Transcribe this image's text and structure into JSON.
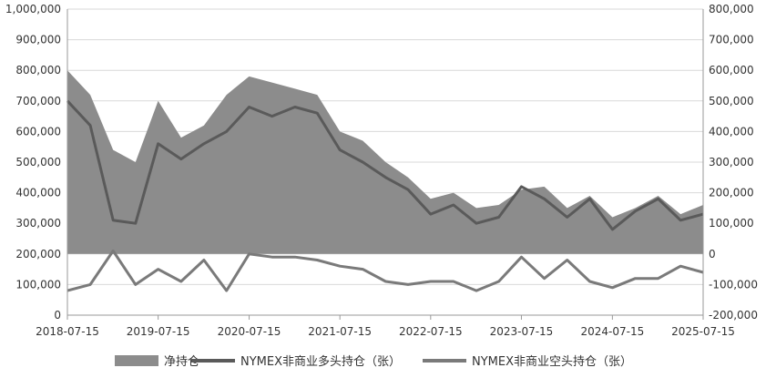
{
  "chart_data": {
    "type": "line",
    "dual_axis": true,
    "title": "",
    "x_ticks": [
      "2018-07-15",
      "2019-07-15",
      "2020-07-15",
      "2021-07-15",
      "2022-07-15",
      "2023-07-15",
      "2024-07-15",
      "2025-07-15"
    ],
    "y_left": {
      "min": 0,
      "max": 1000000,
      "ticks": [
        "0",
        "100,000",
        "200,000",
        "300,000",
        "400,000",
        "500,000",
        "600,000",
        "700,000",
        "800,000",
        "900,000",
        "1,000,000"
      ]
    },
    "y_right": {
      "min": -200000,
      "max": 800000,
      "ticks": [
        "-200,000",
        "-100,000",
        "0",
        "100,000",
        "200,000",
        "300,000",
        "400,000",
        "500,000",
        "600,000",
        "700,000",
        "800,000"
      ]
    },
    "grid": true,
    "legend_position": "bottom",
    "colors": {
      "area": "#8c8c8c",
      "long_line": "#5a5a5a",
      "short_line": "#7a7a7a",
      "grid": "#d9d9d9",
      "axis": "#999999"
    },
    "x": [
      "2018-07-15",
      "2018-10-15",
      "2019-01-15",
      "2019-04-15",
      "2019-07-15",
      "2019-10-15",
      "2020-01-15",
      "2020-04-15",
      "2020-07-15",
      "2020-10-15",
      "2021-01-15",
      "2021-04-15",
      "2021-07-15",
      "2021-10-15",
      "2022-01-15",
      "2022-04-15",
      "2022-07-15",
      "2022-10-15",
      "2023-01-15",
      "2023-04-15",
      "2023-07-15",
      "2023-10-15",
      "2024-01-15",
      "2024-04-15",
      "2024-07-15",
      "2024-10-15",
      "2025-01-15",
      "2025-04-15",
      "2025-07-15"
    ],
    "series": [
      {
        "name": "净持仓",
        "type": "area",
        "axis": "right",
        "values": [
          600000,
          520000,
          340000,
          300000,
          500000,
          380000,
          420000,
          520000,
          580000,
          560000,
          540000,
          520000,
          400000,
          370000,
          300000,
          250000,
          180000,
          200000,
          150000,
          160000,
          210000,
          220000,
          150000,
          190000,
          120000,
          150000,
          190000,
          130000,
          160000
        ]
      },
      {
        "name": "NYMEX非商业多头持仓（张）",
        "type": "line",
        "axis": "left",
        "values": [
          700000,
          620000,
          310000,
          300000,
          560000,
          510000,
          560000,
          600000,
          680000,
          650000,
          680000,
          660000,
          540000,
          500000,
          450000,
          410000,
          330000,
          360000,
          300000,
          320000,
          420000,
          380000,
          320000,
          380000,
          280000,
          340000,
          380000,
          310000,
          330000
        ]
      },
      {
        "name": "NYMEX非商业空头持仓（张）",
        "type": "line",
        "axis": "left",
        "values": [
          80000,
          100000,
          210000,
          100000,
          150000,
          110000,
          180000,
          80000,
          200000,
          190000,
          190000,
          180000,
          160000,
          150000,
          110000,
          100000,
          110000,
          110000,
          80000,
          110000,
          190000,
          120000,
          180000,
          110000,
          90000,
          120000,
          120000,
          160000,
          140000
        ]
      }
    ],
    "legend": [
      "净持仓",
      "NYMEX非商业多头持仓（张）",
      "NYMEX非商业空头持仓（张）"
    ]
  }
}
